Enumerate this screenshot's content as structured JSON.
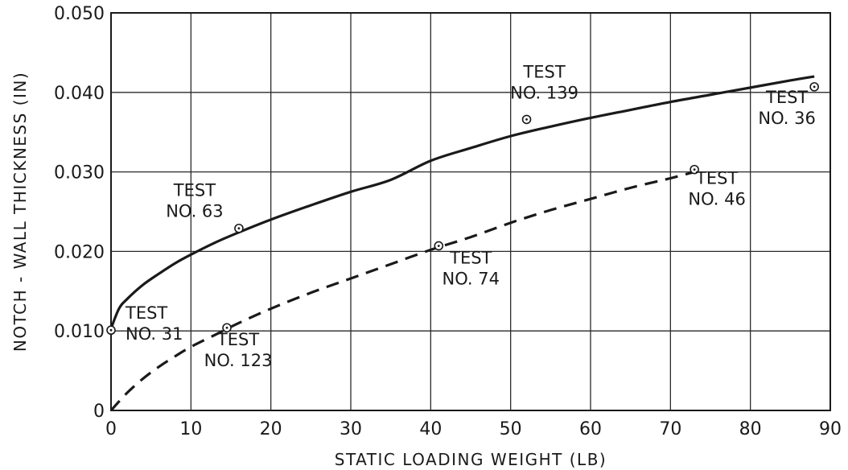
{
  "chart_data": {
    "type": "line",
    "title": "",
    "xlabel": "STATIC LOADING WEIGHT (LB)",
    "ylabel": "NOTCH - WALL  THICKNESS  (IN)",
    "xlim": [
      0,
      90
    ],
    "ylim": [
      0,
      0.05
    ],
    "grid": true,
    "x_ticks": [
      0,
      10,
      20,
      30,
      40,
      50,
      60,
      70,
      80,
      90
    ],
    "x_tick_labels": [
      "0",
      "10",
      "20",
      "30",
      "40",
      "50",
      "60",
      "70",
      "80",
      "90"
    ],
    "y_ticks": [
      0,
      0.01,
      0.02,
      0.03,
      0.04,
      0.05
    ],
    "y_tick_labels": [
      "0",
      "0.010",
      "0.020",
      "0.030",
      "0.040",
      "0.050"
    ],
    "series": [
      {
        "style": "solid",
        "x": [
          0,
          1,
          2,
          4,
          6,
          8,
          10,
          13,
          16,
          20,
          25,
          30,
          35,
          40,
          45,
          50,
          55,
          60,
          65,
          70,
          75,
          80,
          85,
          88
        ],
        "y": [
          0.0103,
          0.0128,
          0.014,
          0.0158,
          0.0172,
          0.0185,
          0.0196,
          0.0211,
          0.0224,
          0.024,
          0.0258,
          0.0275,
          0.029,
          0.0314,
          0.033,
          0.0345,
          0.0357,
          0.0368,
          0.0378,
          0.0388,
          0.0397,
          0.0406,
          0.0415,
          0.042
        ]
      },
      {
        "style": "dashed",
        "x": [
          0,
          2,
          4,
          6,
          8,
          10,
          13,
          16,
          20,
          25,
          30,
          35,
          40,
          45,
          50,
          55,
          60,
          65,
          70,
          73
        ],
        "y": [
          0.0,
          0.0022,
          0.004,
          0.0055,
          0.0068,
          0.008,
          0.0095,
          0.011,
          0.0128,
          0.0148,
          0.0166,
          0.0184,
          0.0202,
          0.0218,
          0.0236,
          0.0252,
          0.0266,
          0.028,
          0.0292,
          0.03
        ]
      }
    ],
    "points": [
      {
        "x": 0.0,
        "y": 0.0101,
        "label_lines": [
          "TEST",
          "NO. 31"
        ]
      },
      {
        "x": 16.0,
        "y": 0.0229,
        "label_lines": [
          "TEST",
          "NO. 63"
        ]
      },
      {
        "x": 14.5,
        "y": 0.0104,
        "label_lines": [
          "TEST",
          "NO. 123"
        ]
      },
      {
        "x": 41.0,
        "y": 0.0207,
        "label_lines": [
          "TEST",
          "NO. 74"
        ]
      },
      {
        "x": 52.0,
        "y": 0.0366,
        "label_lines": [
          "TEST",
          "NO. 139"
        ]
      },
      {
        "x": 73.0,
        "y": 0.0303,
        "label_lines": [
          "TEST",
          "NO. 46"
        ]
      },
      {
        "x": 88.0,
        "y": 0.0407,
        "label_lines": [
          "TEST",
          "NO. 36"
        ]
      }
    ]
  }
}
